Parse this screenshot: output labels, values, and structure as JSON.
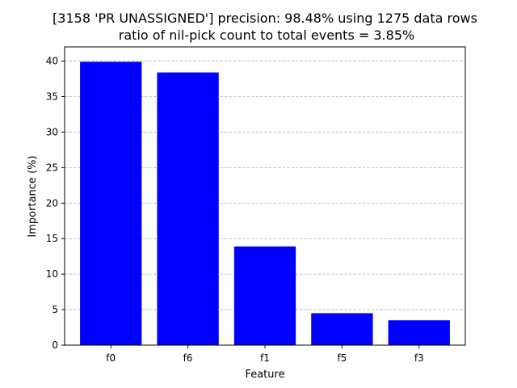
{
  "chart_data": {
    "type": "bar",
    "title": [
      "[3158 'PR UNASSIGNED'] precision: 98.48% using 1275 data rows",
      "ratio of nil-pick count to total events = 3.85%"
    ],
    "xlabel": "Feature",
    "ylabel": "Importance (%)",
    "categories": [
      "f0",
      "f6",
      "f1",
      "f5",
      "f3"
    ],
    "values": [
      39.9,
      38.4,
      13.9,
      4.5,
      3.5
    ],
    "ylim": [
      0,
      42
    ],
    "yticks": [
      0,
      5,
      10,
      15,
      20,
      25,
      30,
      35,
      40
    ],
    "grid": "y, dashed",
    "legend": "none",
    "colors": {
      "bar": "#0000ff",
      "grid": "#b0b0b0",
      "axis": "#000000"
    }
  }
}
